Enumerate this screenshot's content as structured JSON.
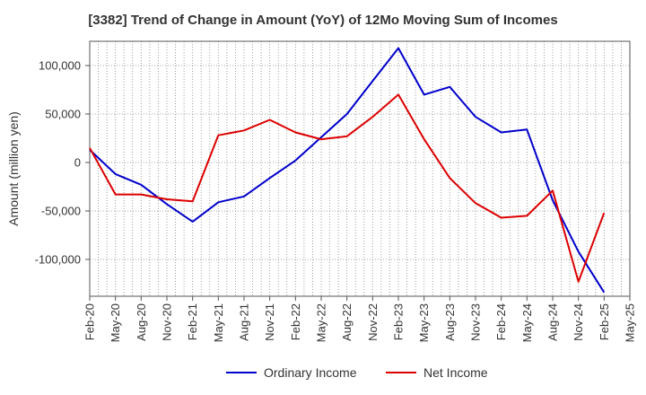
{
  "chart_data": {
    "type": "line",
    "title": "[3382]  Trend of Change in Amount (YoY) of 12Mo Moving Sum of Incomes",
    "xlabel": "",
    "ylabel": "Amount (million yen)",
    "ylim": [
      -138000,
      125000
    ],
    "yticks": [
      100000,
      50000,
      0,
      -50000,
      -100000
    ],
    "ytick_labels": [
      "100,000",
      "50,000",
      "0",
      "-50,000",
      "-100,000"
    ],
    "x": [
      "Feb-20",
      "May-20",
      "Aug-20",
      "Nov-20",
      "Feb-21",
      "May-21",
      "Aug-21",
      "Nov-21",
      "Feb-22",
      "May-22",
      "Aug-22",
      "Nov-22",
      "Feb-23",
      "May-23",
      "Aug-23",
      "Nov-23",
      "Feb-24",
      "May-24",
      "Aug-24",
      "Nov-24",
      "Feb-25",
      "May-25"
    ],
    "grid": true,
    "legend_position": "bottom",
    "series": [
      {
        "name": "Ordinary Income",
        "color": "#0000cc",
        "values": [
          13000,
          -12000,
          -23000,
          -43000,
          -61000,
          -41000,
          -35000,
          -16000,
          2000,
          26000,
          50000,
          84000,
          118000,
          70000,
          78000,
          47000,
          31000,
          34000,
          -39000,
          -92000,
          -134000,
          null
        ]
      },
      {
        "name": "Net Income",
        "color": "#dd0000",
        "values": [
          15000,
          -33000,
          -33000,
          -38000,
          -40000,
          28000,
          33000,
          44000,
          31000,
          24000,
          27000,
          47000,
          70000,
          24000,
          -16000,
          -42000,
          -57000,
          -55000,
          -29000,
          -123000,
          -52000,
          null
        ]
      }
    ]
  }
}
